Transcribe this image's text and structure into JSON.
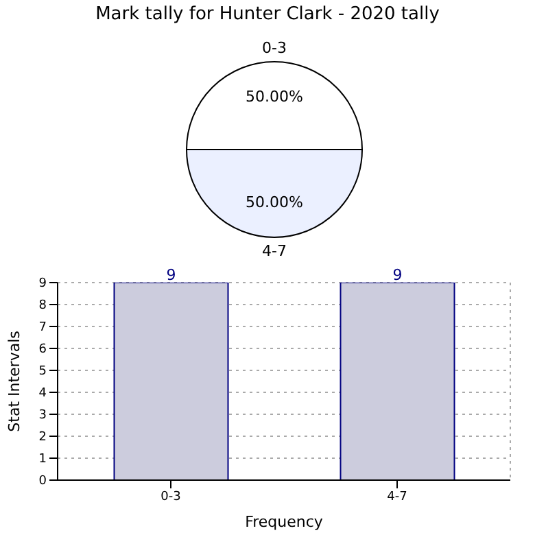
{
  "chart_data": [
    {
      "type": "pie",
      "title": "Mark tally for Hunter Clark - 2020 tally",
      "categories": [
        "0-3",
        "4-7"
      ],
      "values": [
        50,
        50
      ],
      "colors": [
        "#ffffff",
        "#ebf0ff"
      ],
      "value_labels": [
        "50.00%",
        "50.00%"
      ]
    },
    {
      "type": "bar",
      "categories": [
        "0-3",
        "4-7"
      ],
      "values": [
        9,
        9
      ],
      "color": "#ccccdd",
      "xlabel": "Frequency",
      "ylabel": "Stat Intervals",
      "ylim": [
        0,
        9
      ],
      "yticks": [
        0,
        1,
        2,
        3,
        4,
        5,
        6,
        7,
        8,
        9
      ],
      "grid": true,
      "data_labels": true
    }
  ]
}
